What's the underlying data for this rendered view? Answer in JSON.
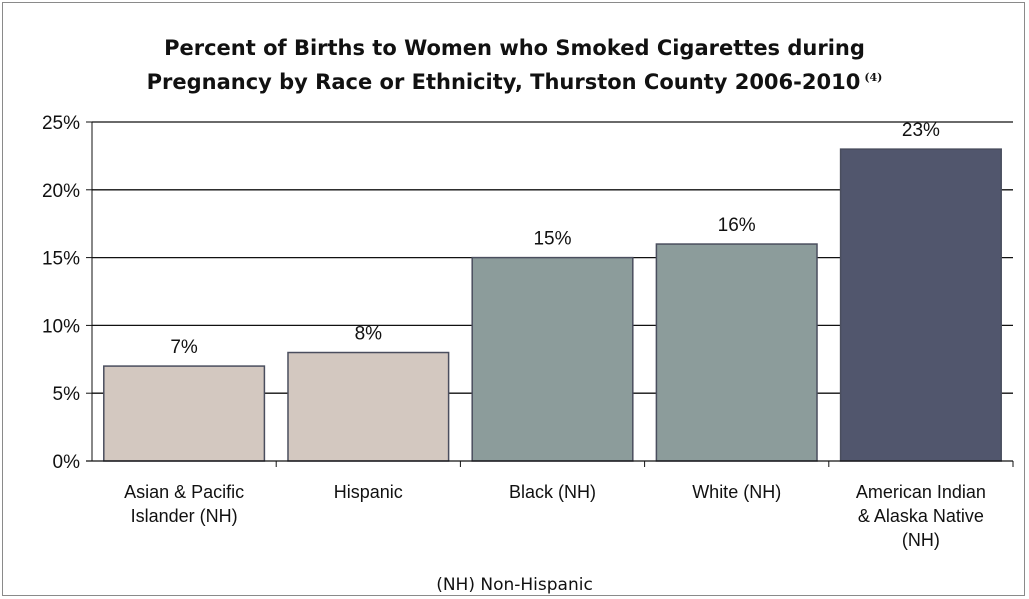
{
  "chart_data": {
    "type": "bar",
    "title_line1": "Percent of Births to Women who Smoked Cigarettes during",
    "title_line2": "Pregnancy by Race or Ethnicity, Thurston County 2006-2010",
    "title_note": "(4)",
    "categories": [
      [
        "Asian & Pacific",
        "Islander (NH)"
      ],
      [
        "Hispanic"
      ],
      [
        "Black (NH)"
      ],
      [
        "White (NH)"
      ],
      [
        "American Indian",
        "& Alaska Native",
        "(NH)"
      ]
    ],
    "values": [
      7,
      8,
      15,
      16,
      23
    ],
    "data_labels": [
      "7%",
      "8%",
      "15%",
      "16%",
      "23%"
    ],
    "bar_colors": [
      "#d3c8c0",
      "#d3c8c0",
      "#8c9c9b",
      "#8c9c9b",
      "#51566d"
    ],
    "ylim": [
      0,
      25
    ],
    "yticks": [
      0,
      5,
      10,
      15,
      20,
      25
    ],
    "ytick_labels": [
      "0%",
      "5%",
      "10%",
      "15%",
      "20%",
      "25%"
    ],
    "grid": true,
    "legend": "none",
    "footnote": "(NH) Non-Hispanic"
  }
}
